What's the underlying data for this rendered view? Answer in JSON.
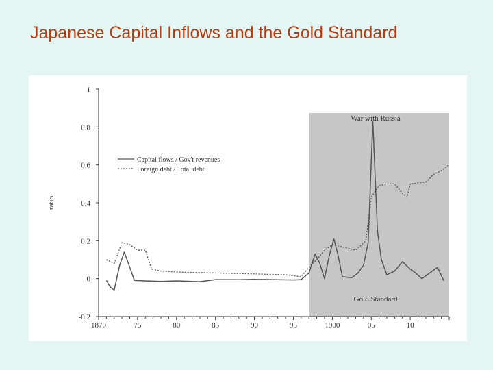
{
  "slide": {
    "title": "Japanese Capital Inflows and the Gold Standard"
  },
  "chart_data": {
    "type": "line",
    "title": "",
    "xlabel": "",
    "ylabel": "ratio",
    "xlim": [
      1870,
      1915
    ],
    "ylim": [
      -0.2,
      1
    ],
    "x_tick_labels": [
      {
        "value": 1870,
        "label": "1870"
      },
      {
        "value": 1875,
        "label": "75"
      },
      {
        "value": 1880,
        "label": "80"
      },
      {
        "value": 1885,
        "label": "85"
      },
      {
        "value": 1890,
        "label": "90"
      },
      {
        "value": 1895,
        "label": "95"
      },
      {
        "value": 1900,
        "label": "1900"
      },
      {
        "value": 1905,
        "label": "05"
      },
      {
        "value": 1910,
        "label": "10"
      }
    ],
    "y_tick_labels": [
      {
        "value": -0.2,
        "label": "-0.2"
      },
      {
        "value": 0,
        "label": "0"
      },
      {
        "value": 0.2,
        "label": "0.2"
      },
      {
        "value": 0.4,
        "label": "0.4"
      },
      {
        "value": 0.6,
        "label": "0.6"
      },
      {
        "value": 0.8,
        "label": "0.8"
      },
      {
        "value": 1,
        "label": "1"
      }
    ],
    "grid": false,
    "legend": "upper-left",
    "shaded_regions": [
      {
        "x0": 1897,
        "x1": 1915,
        "color": "#c6c6c6",
        "top_label": "War with Russia",
        "bottom_label": "Gold Standard"
      }
    ],
    "series": [
      {
        "name": "Capital flows / Gov't revenues",
        "style": "solid",
        "color": "#555555",
        "points": [
          [
            1871,
            -0.01
          ],
          [
            1871.5,
            -0.045
          ],
          [
            1872,
            -0.06
          ],
          [
            1872.7,
            0.07
          ],
          [
            1873.3,
            0.14
          ],
          [
            1874,
            0.06
          ],
          [
            1874.6,
            -0.01
          ],
          [
            1876,
            -0.012
          ],
          [
            1878,
            -0.015
          ],
          [
            1880,
            -0.012
          ],
          [
            1883,
            -0.016
          ],
          [
            1885,
            -0.005
          ],
          [
            1888,
            -0.006
          ],
          [
            1890,
            -0.004
          ],
          [
            1895,
            -0.007
          ],
          [
            1896,
            -0.005
          ],
          [
            1897,
            0.03
          ],
          [
            1897.8,
            0.13
          ],
          [
            1898.4,
            0.08
          ],
          [
            1899,
            0.0
          ],
          [
            1899.6,
            0.12
          ],
          [
            1900.2,
            0.21
          ],
          [
            1900.7,
            0.13
          ],
          [
            1901.3,
            0.01
          ],
          [
            1902.5,
            0.005
          ],
          [
            1903.3,
            0.03
          ],
          [
            1904,
            0.07
          ],
          [
            1904.6,
            0.19
          ],
          [
            1905.2,
            0.83
          ],
          [
            1905.8,
            0.25
          ],
          [
            1906.3,
            0.1
          ],
          [
            1907,
            0.02
          ],
          [
            1908,
            0.04
          ],
          [
            1909,
            0.09
          ],
          [
            1910,
            0.05
          ],
          [
            1910.7,
            0.03
          ],
          [
            1911.5,
            0.0
          ],
          [
            1912.5,
            0.03
          ],
          [
            1913.5,
            0.06
          ],
          [
            1914.3,
            -0.01
          ]
        ]
      },
      {
        "name": "Foreign debt / Total debt",
        "style": "dotted",
        "color": "#555555",
        "points": [
          [
            1871,
            0.1
          ],
          [
            1872,
            0.08
          ],
          [
            1873,
            0.19
          ],
          [
            1874,
            0.18
          ],
          [
            1875,
            0.15
          ],
          [
            1876,
            0.15
          ],
          [
            1876.8,
            0.05
          ],
          [
            1878,
            0.04
          ],
          [
            1880,
            0.035
          ],
          [
            1885,
            0.03
          ],
          [
            1890,
            0.025
          ],
          [
            1894,
            0.02
          ],
          [
            1896,
            0.01
          ],
          [
            1897,
            0.06
          ],
          [
            1898,
            0.1
          ],
          [
            1899,
            0.15
          ],
          [
            1900,
            0.18
          ],
          [
            1901,
            0.17
          ],
          [
            1902,
            0.16
          ],
          [
            1903,
            0.15
          ],
          [
            1904.3,
            0.2
          ],
          [
            1905,
            0.43
          ],
          [
            1906,
            0.49
          ],
          [
            1907,
            0.5
          ],
          [
            1908,
            0.5
          ],
          [
            1909,
            0.45
          ],
          [
            1909.6,
            0.43
          ],
          [
            1910,
            0.5
          ],
          [
            1912,
            0.51
          ],
          [
            1913,
            0.55
          ],
          [
            1914,
            0.57
          ],
          [
            1915,
            0.6
          ]
        ]
      }
    ]
  }
}
